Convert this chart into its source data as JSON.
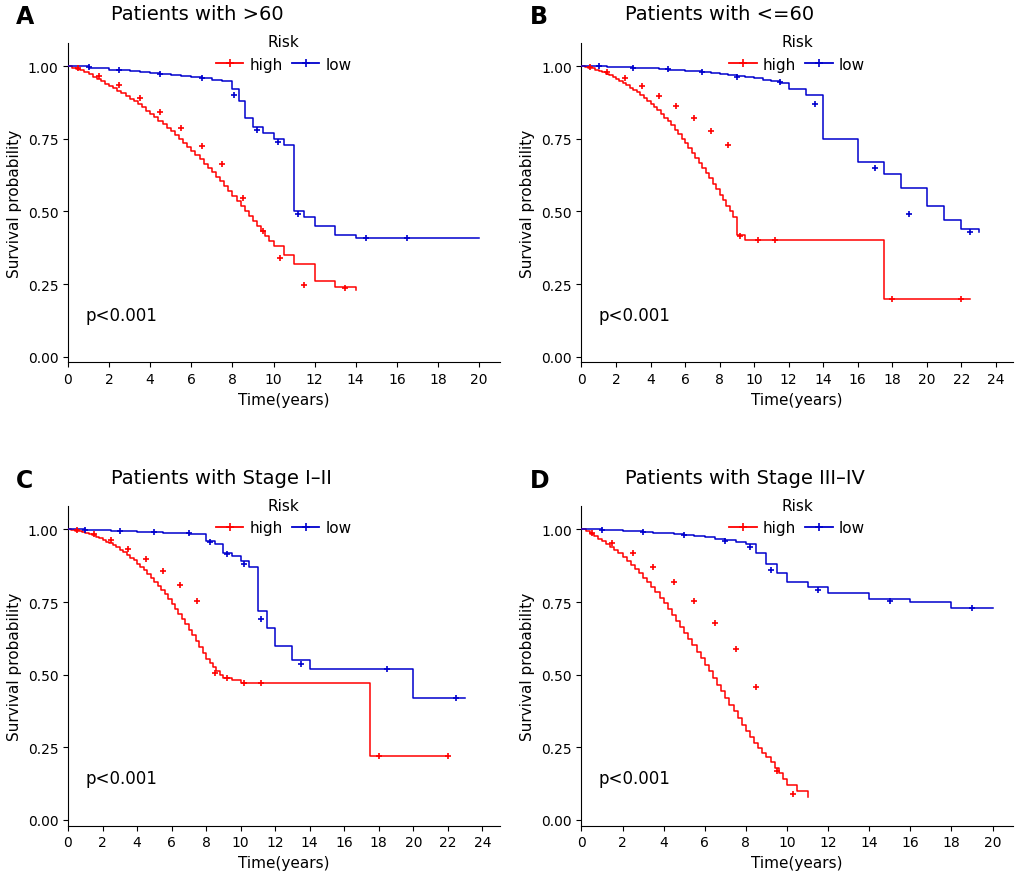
{
  "panels": [
    {
      "label": "A",
      "title": "Patients with >60",
      "xlim": [
        0,
        21
      ],
      "xticks": [
        0,
        2,
        4,
        6,
        8,
        10,
        12,
        14,
        16,
        18,
        20
      ],
      "high_times": [
        0,
        0.2,
        0.4,
        0.6,
        0.8,
        1.0,
        1.2,
        1.4,
        1.6,
        1.8,
        2.0,
        2.2,
        2.4,
        2.6,
        2.8,
        3.0,
        3.2,
        3.4,
        3.6,
        3.8,
        4.0,
        4.2,
        4.4,
        4.6,
        4.8,
        5.0,
        5.2,
        5.4,
        5.6,
        5.8,
        6.0,
        6.2,
        6.4,
        6.6,
        6.8,
        7.0,
        7.2,
        7.4,
        7.6,
        7.8,
        8.0,
        8.2,
        8.4,
        8.6,
        8.8,
        9.0,
        9.2,
        9.4,
        9.6,
        9.8,
        10.0,
        10.5,
        11.0,
        12.0,
        13.0,
        14.0
      ],
      "high_surv": [
        1.0,
        0.995,
        0.99,
        0.985,
        0.978,
        0.971,
        0.964,
        0.956,
        0.948,
        0.94,
        0.932,
        0.924,
        0.915,
        0.906,
        0.897,
        0.888,
        0.879,
        0.869,
        0.858,
        0.847,
        0.836,
        0.824,
        0.812,
        0.8,
        0.788,
        0.775,
        0.762,
        0.749,
        0.736,
        0.722,
        0.708,
        0.694,
        0.679,
        0.664,
        0.649,
        0.634,
        0.619,
        0.603,
        0.587,
        0.571,
        0.554,
        0.537,
        0.52,
        0.502,
        0.484,
        0.467,
        0.449,
        0.432,
        0.415,
        0.398,
        0.38,
        0.35,
        0.32,
        0.26,
        0.24,
        0.23
      ],
      "low_times": [
        0,
        0.5,
        1.0,
        1.5,
        2.0,
        2.5,
        3.0,
        3.5,
        4.0,
        4.5,
        5.0,
        5.5,
        6.0,
        6.5,
        7.0,
        7.5,
        8.0,
        8.3,
        8.6,
        9.0,
        9.5,
        10.0,
        10.5,
        11.0,
        11.5,
        12.0,
        13.0,
        14.0,
        15.0,
        16.0,
        17.0,
        20.0
      ],
      "low_surv": [
        1.0,
        1.0,
        0.995,
        0.992,
        0.988,
        0.985,
        0.982,
        0.979,
        0.976,
        0.973,
        0.969,
        0.966,
        0.962,
        0.958,
        0.953,
        0.948,
        0.92,
        0.88,
        0.82,
        0.79,
        0.77,
        0.75,
        0.73,
        0.5,
        0.48,
        0.45,
        0.42,
        0.41,
        0.41,
        0.41,
        0.41,
        0.41
      ],
      "high_censor_times": [
        0.5,
        1.5,
        2.5,
        3.5,
        4.5,
        5.5,
        6.5,
        7.5,
        8.5,
        9.5,
        10.3,
        11.5,
        13.5
      ],
      "high_censor_surv": [
        0.993,
        0.967,
        0.936,
        0.89,
        0.843,
        0.787,
        0.726,
        0.662,
        0.545,
        0.432,
        0.34,
        0.245,
        0.235
      ],
      "low_censor_times": [
        1.0,
        2.5,
        4.5,
        6.5,
        8.1,
        9.2,
        10.2,
        11.2,
        14.5,
        16.5
      ],
      "low_censor_surv": [
        0.997,
        0.986,
        0.974,
        0.96,
        0.9,
        0.78,
        0.74,
        0.49,
        0.41,
        0.41
      ],
      "pvalue": "p<0.001"
    },
    {
      "label": "B",
      "title": "Patients with <=60",
      "xlim": [
        0,
        25
      ],
      "xticks": [
        0,
        2,
        4,
        6,
        8,
        10,
        12,
        14,
        16,
        18,
        20,
        22,
        24
      ],
      "high_times": [
        0,
        0.2,
        0.4,
        0.6,
        0.8,
        1.0,
        1.2,
        1.4,
        1.6,
        1.8,
        2.0,
        2.2,
        2.4,
        2.6,
        2.8,
        3.0,
        3.2,
        3.4,
        3.6,
        3.8,
        4.0,
        4.2,
        4.4,
        4.6,
        4.8,
        5.0,
        5.2,
        5.4,
        5.6,
        5.8,
        6.0,
        6.2,
        6.4,
        6.6,
        6.8,
        7.0,
        7.2,
        7.4,
        7.6,
        7.8,
        8.0,
        8.2,
        8.4,
        8.6,
        8.8,
        9.0,
        9.5,
        10.0,
        10.5,
        11.0,
        17.5,
        18.5,
        22.5
      ],
      "high_surv": [
        1.0,
        0.998,
        0.995,
        0.992,
        0.988,
        0.984,
        0.979,
        0.974,
        0.968,
        0.962,
        0.956,
        0.949,
        0.942,
        0.934,
        0.926,
        0.918,
        0.91,
        0.901,
        0.891,
        0.881,
        0.871,
        0.86,
        0.848,
        0.836,
        0.823,
        0.81,
        0.796,
        0.781,
        0.766,
        0.75,
        0.734,
        0.718,
        0.702,
        0.685,
        0.668,
        0.65,
        0.632,
        0.614,
        0.595,
        0.576,
        0.557,
        0.538,
        0.519,
        0.5,
        0.482,
        0.42,
        0.4,
        0.4,
        0.4,
        0.4,
        0.2,
        0.2,
        0.2
      ],
      "low_times": [
        0,
        0.5,
        1.0,
        1.5,
        2.0,
        2.5,
        3.0,
        3.5,
        4.0,
        4.5,
        5.0,
        5.5,
        6.0,
        6.5,
        7.0,
        7.5,
        8.0,
        8.5,
        9.0,
        9.5,
        10.0,
        10.5,
        11.0,
        11.5,
        12.0,
        13.0,
        14.0,
        16.0,
        17.5,
        18.5,
        20.0,
        21.0,
        22.0,
        23.0
      ],
      "low_surv": [
        1.0,
        1.0,
        0.999,
        0.998,
        0.997,
        0.996,
        0.995,
        0.993,
        0.992,
        0.99,
        0.988,
        0.986,
        0.984,
        0.982,
        0.979,
        0.976,
        0.973,
        0.97,
        0.966,
        0.962,
        0.958,
        0.953,
        0.948,
        0.942,
        0.92,
        0.9,
        0.75,
        0.67,
        0.63,
        0.58,
        0.52,
        0.47,
        0.44,
        0.43
      ],
      "high_censor_times": [
        0.5,
        1.5,
        2.5,
        3.5,
        4.5,
        5.5,
        6.5,
        7.5,
        8.5,
        9.2,
        10.2,
        11.2,
        18.0,
        22.0
      ],
      "high_censor_surv": [
        0.997,
        0.981,
        0.96,
        0.93,
        0.897,
        0.861,
        0.82,
        0.776,
        0.728,
        0.415,
        0.4,
        0.4,
        0.2,
        0.2
      ],
      "low_censor_times": [
        1.0,
        3.0,
        5.0,
        7.0,
        9.0,
        11.5,
        13.5,
        17.0,
        19.0,
        22.5
      ],
      "low_censor_surv": [
        0.999,
        0.995,
        0.989,
        0.98,
        0.964,
        0.945,
        0.87,
        0.65,
        0.49,
        0.43
      ],
      "pvalue": "p<0.001"
    },
    {
      "label": "C",
      "title": "Patients with Stage I–II",
      "xlim": [
        0,
        25
      ],
      "xticks": [
        0,
        2,
        4,
        6,
        8,
        10,
        12,
        14,
        16,
        18,
        20,
        22,
        24
      ],
      "high_times": [
        0,
        0.2,
        0.4,
        0.6,
        0.8,
        1.0,
        1.2,
        1.4,
        1.6,
        1.8,
        2.0,
        2.2,
        2.4,
        2.6,
        2.8,
        3.0,
        3.2,
        3.4,
        3.6,
        3.8,
        4.0,
        4.2,
        4.4,
        4.6,
        4.8,
        5.0,
        5.2,
        5.4,
        5.6,
        5.8,
        6.0,
        6.2,
        6.4,
        6.6,
        6.8,
        7.0,
        7.2,
        7.4,
        7.6,
        7.8,
        8.0,
        8.2,
        8.4,
        8.6,
        8.8,
        9.0,
        9.5,
        10.0,
        10.5,
        11.0,
        11.5,
        17.5,
        22.0
      ],
      "high_surv": [
        1.0,
        0.998,
        0.996,
        0.993,
        0.99,
        0.987,
        0.983,
        0.979,
        0.974,
        0.969,
        0.964,
        0.958,
        0.952,
        0.945,
        0.938,
        0.93,
        0.922,
        0.913,
        0.903,
        0.893,
        0.882,
        0.871,
        0.859,
        0.847,
        0.834,
        0.82,
        0.806,
        0.791,
        0.776,
        0.76,
        0.743,
        0.726,
        0.709,
        0.691,
        0.673,
        0.654,
        0.635,
        0.616,
        0.596,
        0.576,
        0.555,
        0.54,
        0.525,
        0.512,
        0.5,
        0.49,
        0.48,
        0.47,
        0.47,
        0.47,
        0.47,
        0.22,
        0.22
      ],
      "low_times": [
        0,
        0.5,
        1.0,
        1.5,
        2.0,
        2.5,
        3.0,
        3.5,
        4.0,
        4.5,
        5.0,
        5.5,
        6.0,
        6.5,
        7.0,
        7.5,
        8.0,
        8.5,
        9.0,
        9.5,
        10.0,
        10.5,
        11.0,
        11.5,
        12.0,
        13.0,
        14.0,
        16.0,
        18.0,
        20.0,
        22.0,
        23.0
      ],
      "low_surv": [
        1.0,
        1.0,
        0.999,
        0.998,
        0.997,
        0.996,
        0.995,
        0.993,
        0.992,
        0.991,
        0.99,
        0.989,
        0.988,
        0.987,
        0.985,
        0.984,
        0.96,
        0.95,
        0.92,
        0.91,
        0.89,
        0.87,
        0.72,
        0.66,
        0.6,
        0.55,
        0.52,
        0.52,
        0.52,
        0.42,
        0.42,
        0.42
      ],
      "high_censor_times": [
        0.5,
        1.5,
        2.5,
        3.5,
        4.5,
        5.5,
        6.5,
        7.5,
        8.5,
        9.2,
        10.2,
        11.2,
        18.0,
        22.0
      ],
      "high_censor_surv": [
        0.997,
        0.985,
        0.963,
        0.934,
        0.899,
        0.858,
        0.81,
        0.755,
        0.507,
        0.488,
        0.472,
        0.47,
        0.22,
        0.22
      ],
      "low_censor_times": [
        1.0,
        3.0,
        5.0,
        7.0,
        8.2,
        9.2,
        10.2,
        11.2,
        13.5,
        18.5,
        22.5
      ],
      "low_censor_surv": [
        0.999,
        0.995,
        0.99,
        0.986,
        0.958,
        0.915,
        0.88,
        0.69,
        0.535,
        0.52,
        0.42
      ],
      "pvalue": "p<0.001"
    },
    {
      "label": "D",
      "title": "Patients with Stage III–IV",
      "xlim": [
        0,
        21
      ],
      "xticks": [
        0,
        2,
        4,
        6,
        8,
        10,
        12,
        14,
        16,
        18,
        20
      ],
      "high_times": [
        0,
        0.2,
        0.4,
        0.6,
        0.8,
        1.0,
        1.2,
        1.4,
        1.6,
        1.8,
        2.0,
        2.2,
        2.4,
        2.6,
        2.8,
        3.0,
        3.2,
        3.4,
        3.6,
        3.8,
        4.0,
        4.2,
        4.4,
        4.6,
        4.8,
        5.0,
        5.2,
        5.4,
        5.6,
        5.8,
        6.0,
        6.2,
        6.4,
        6.6,
        6.8,
        7.0,
        7.2,
        7.4,
        7.6,
        7.8,
        8.0,
        8.2,
        8.4,
        8.6,
        8.8,
        9.0,
        9.2,
        9.4,
        9.6,
        9.8,
        10.0,
        10.5,
        11.0
      ],
      "high_surv": [
        1.0,
        0.993,
        0.985,
        0.977,
        0.968,
        0.959,
        0.949,
        0.939,
        0.928,
        0.917,
        0.905,
        0.892,
        0.879,
        0.865,
        0.85,
        0.834,
        0.818,
        0.801,
        0.783,
        0.764,
        0.745,
        0.725,
        0.705,
        0.685,
        0.665,
        0.644,
        0.623,
        0.601,
        0.579,
        0.557,
        0.534,
        0.512,
        0.489,
        0.466,
        0.443,
        0.42,
        0.397,
        0.374,
        0.351,
        0.328,
        0.305,
        0.285,
        0.265,
        0.248,
        0.231,
        0.215,
        0.2,
        0.18,
        0.16,
        0.14,
        0.12,
        0.1,
        0.08
      ],
      "low_times": [
        0,
        0.5,
        1.0,
        1.5,
        2.0,
        2.5,
        3.0,
        3.5,
        4.0,
        4.5,
        5.0,
        5.5,
        6.0,
        6.5,
        7.0,
        7.5,
        8.0,
        8.5,
        9.0,
        9.5,
        10.0,
        11.0,
        12.0,
        14.0,
        16.0,
        18.0,
        20.0
      ],
      "low_surv": [
        1.0,
        1.0,
        0.998,
        0.997,
        0.995,
        0.993,
        0.991,
        0.989,
        0.987,
        0.984,
        0.981,
        0.977,
        0.973,
        0.968,
        0.962,
        0.956,
        0.95,
        0.92,
        0.88,
        0.85,
        0.82,
        0.8,
        0.78,
        0.76,
        0.75,
        0.73,
        0.73
      ],
      "high_censor_times": [
        0.5,
        1.5,
        2.5,
        3.5,
        4.5,
        5.5,
        6.5,
        7.5,
        8.5,
        9.5,
        10.3
      ],
      "high_censor_surv": [
        0.989,
        0.954,
        0.917,
        0.872,
        0.82,
        0.755,
        0.678,
        0.59,
        0.457,
        0.17,
        0.09
      ],
      "low_censor_times": [
        1.0,
        3.0,
        5.0,
        7.0,
        8.2,
        9.2,
        11.5,
        15.0,
        19.0
      ],
      "low_censor_surv": [
        0.999,
        0.992,
        0.979,
        0.96,
        0.94,
        0.86,
        0.79,
        0.755,
        0.73
      ],
      "pvalue": "p<0.001"
    }
  ],
  "high_color": "#FF0000",
  "low_color": "#0000CD",
  "bg_color": "#FFFFFF",
  "ylabel": "Survival probability",
  "xlabel": "Time(years)",
  "ylim": [
    -0.02,
    1.08
  ],
  "yticks": [
    0.0,
    0.25,
    0.5,
    0.75,
    1.0
  ],
  "title_fontsize": 14,
  "label_fontsize": 11,
  "tick_fontsize": 10,
  "legend_fontsize": 11,
  "pval_fontsize": 12
}
